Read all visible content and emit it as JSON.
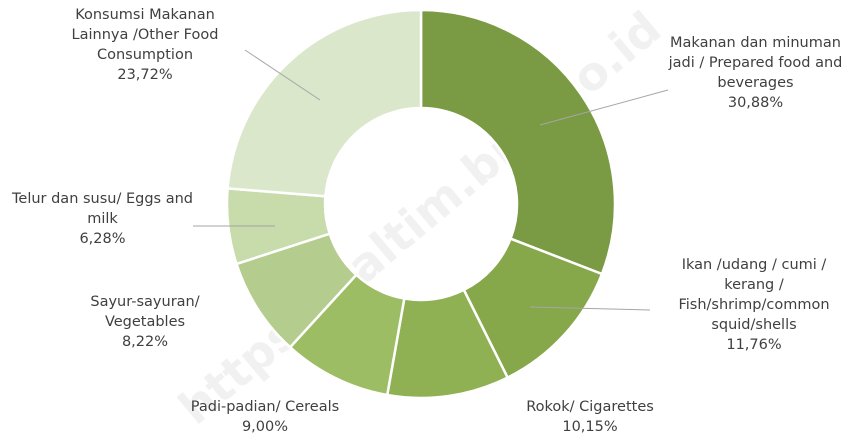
{
  "chart_data": {
    "type": "donut",
    "categories": [
      "Makanan dan minuman jadi / Prepared food and beverages",
      "Ikan  /udang / cumi / kerang / Fish/shrimp/common squid/shells",
      "Rokok/ Cigarettes",
      "Padi-padian/ Cereals",
      "Sayur-sayuran/ Vegetables",
      "Telur dan susu/ Eggs and milk",
      "Konsumsi Makanan Lainnya /Other Food Consumption"
    ],
    "values": [
      30.88,
      11.76,
      10.15,
      9.0,
      8.22,
      6.28,
      23.72
    ],
    "value_labels": [
      "30,88%",
      "11,76%",
      "10,15%",
      "9,00%",
      "8,22%",
      "6,28%",
      "23,72%"
    ],
    "colors": [
      "#7a9a43",
      "#86a84a",
      "#8fb153",
      "#9dbd64",
      "#b4cd8e",
      "#c7dbab",
      "#dbe7ca"
    ]
  },
  "watermark": "https://kaltim.bps.go.id"
}
